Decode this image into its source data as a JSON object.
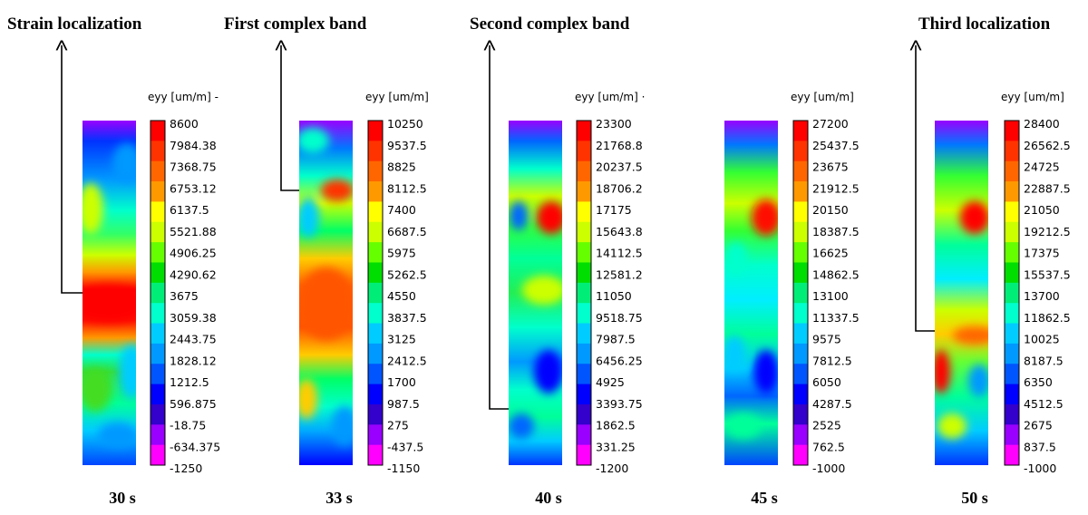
{
  "annotations": [
    {
      "id": "strain",
      "text": "Strain localization"
    },
    {
      "id": "first",
      "text": "First complex band"
    },
    {
      "id": "second",
      "text": "Second complex band"
    },
    {
      "id": "third",
      "text": "Third localization"
    }
  ],
  "panels": [
    {
      "time": "30 s",
      "colorbar_title": "eyy [um/m] -",
      "ticks": [
        "8600",
        "7984.38",
        "7368.75",
        "6753.12",
        "6137.5",
        "5521.88",
        "4906.25",
        "4290.62",
        "3675",
        "3059.38",
        "2443.75",
        "1828.12",
        "1212.5",
        "596.875",
        "-18.75",
        "-634.375",
        "-1250"
      ]
    },
    {
      "time": "33 s",
      "colorbar_title": "eyy [um/m]",
      "ticks": [
        "10250",
        "9537.5",
        "8825",
        "8112.5",
        "7400",
        "6687.5",
        "5975",
        "5262.5",
        "4550",
        "3837.5",
        "3125",
        "2412.5",
        "1700",
        "987.5",
        "275",
        "-437.5",
        "-1150"
      ]
    },
    {
      "time": "40 s",
      "colorbar_title": "eyy [um/m] ·",
      "ticks": [
        "23300",
        "21768.8",
        "20237.5",
        "18706.2",
        "17175",
        "15643.8",
        "14112.5",
        "12581.2",
        "11050",
        "9518.75",
        "7987.5",
        "6456.25",
        "4925",
        "3393.75",
        "1862.5",
        "331.25",
        "-1200"
      ]
    },
    {
      "time": "45 s",
      "colorbar_title": "eyy [um/m]",
      "ticks": [
        "27200",
        "25437.5",
        "23675",
        "21912.5",
        "20150",
        "18387.5",
        "16625",
        "14862.5",
        "13100",
        "11337.5",
        "9575",
        "7812.5",
        "6050",
        "4287.5",
        "2525",
        "762.5",
        "-1000"
      ]
    },
    {
      "time": "50 s",
      "colorbar_title": "eyy [um/m]",
      "ticks": [
        "28400",
        "26562.5",
        "24725",
        "22887.5",
        "21050",
        "19212.5",
        "17375",
        "15537.5",
        "13700",
        "11862.5",
        "10025",
        "8187.5",
        "6350",
        "4512.5",
        "2675",
        "837.5",
        "-1000"
      ]
    }
  ],
  "colormap": [
    "#ff0000",
    "#ff3300",
    "#ff6600",
    "#ff9900",
    "#ffff00",
    "#ccff00",
    "#66ff00",
    "#00dd00",
    "#00ee77",
    "#00ffcc",
    "#00ccff",
    "#0099ff",
    "#0055ff",
    "#0000ff",
    "#3300cc",
    "#9900ff",
    "#ff00ff"
  ]
}
